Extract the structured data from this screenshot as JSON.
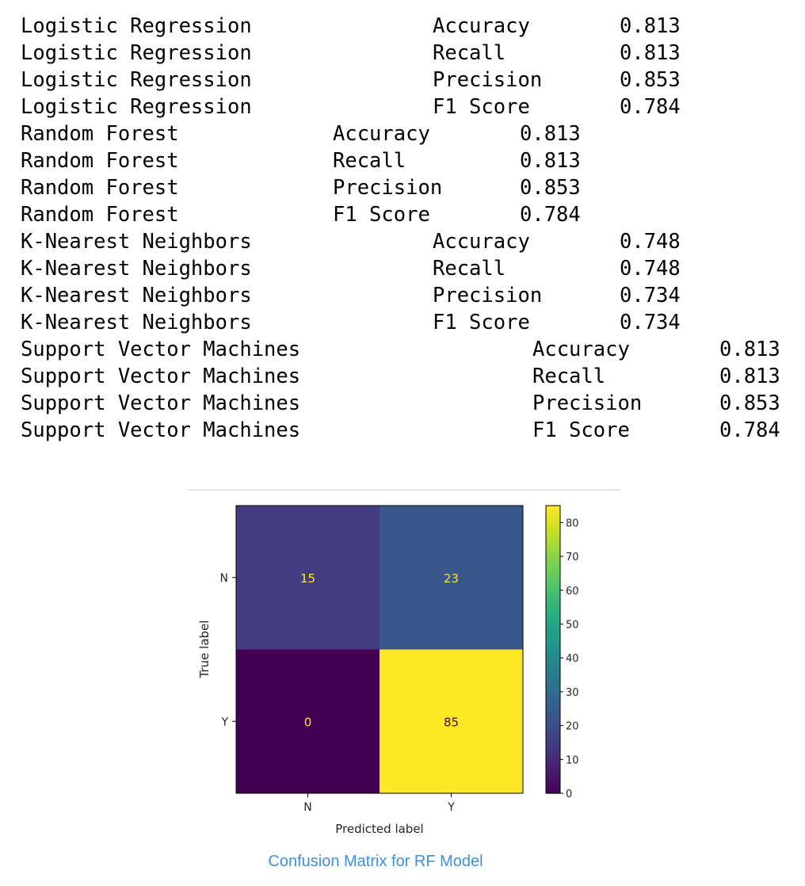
{
  "metrics_output": [
    {
      "group": 0,
      "model": "Logistic Regression",
      "metric": "Accuracy",
      "value": "0.813"
    },
    {
      "group": 0,
      "model": "Logistic Regression",
      "metric": "Recall",
      "value": "0.813"
    },
    {
      "group": 0,
      "model": "Logistic Regression",
      "metric": "Precision",
      "value": "0.853"
    },
    {
      "group": 0,
      "model": "Logistic Regression",
      "metric": "F1 Score",
      "value": "0.784"
    },
    {
      "group": 1,
      "model": "Random Forest",
      "metric": "Accuracy",
      "value": "0.813"
    },
    {
      "group": 1,
      "model": "Random Forest",
      "metric": "Recall",
      "value": "0.813"
    },
    {
      "group": 1,
      "model": "Random Forest",
      "metric": "Precision",
      "value": "0.853"
    },
    {
      "group": 1,
      "model": "Random Forest",
      "metric": "F1 Score",
      "value": "0.784"
    },
    {
      "group": 2,
      "model": "K-Nearest Neighbors",
      "metric": "Accuracy",
      "value": "0.748"
    },
    {
      "group": 2,
      "model": "K-Nearest Neighbors",
      "metric": "Recall",
      "value": "0.748"
    },
    {
      "group": 2,
      "model": "K-Nearest Neighbors",
      "metric": "Precision",
      "value": "0.734"
    },
    {
      "group": 2,
      "model": "K-Nearest Neighbors",
      "metric": "F1 Score",
      "value": "0.734"
    },
    {
      "group": 3,
      "model": "Support Vector Machines",
      "metric": "Accuracy",
      "value": "0.813"
    },
    {
      "group": 3,
      "model": "Support Vector Machines",
      "metric": "Recall",
      "value": "0.813"
    },
    {
      "group": 3,
      "model": "Support Vector Machines",
      "metric": "Precision",
      "value": "0.853"
    },
    {
      "group": 3,
      "model": "Support Vector Machines",
      "metric": "F1 Score",
      "value": "0.784"
    }
  ],
  "chart_data": {
    "type": "heatmap",
    "x_categories": [
      "N",
      "Y"
    ],
    "y_categories": [
      "N",
      "Y"
    ],
    "values": [
      [
        15,
        23
      ],
      [
        0,
        85
      ]
    ],
    "xlabel": "Predicted label",
    "ylabel": "True label",
    "colorbar": {
      "min": 0,
      "max": 85,
      "ticks": [
        0,
        10,
        20,
        30,
        40,
        50,
        60,
        70,
        80
      ]
    },
    "colormap": "viridis"
  },
  "caption": "Confusion Matrix for RF Model"
}
